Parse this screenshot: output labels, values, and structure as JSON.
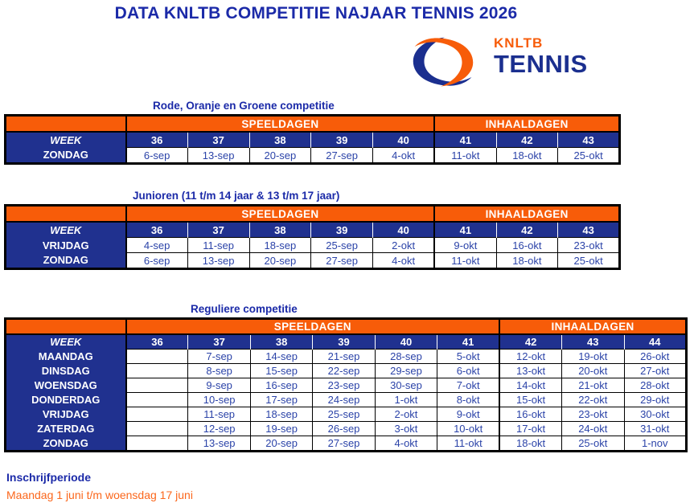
{
  "page": {
    "title": "DATA KNLTB COMPETITIE NAJAAR TENNIS 2026"
  },
  "logo": {
    "brand": "KNLTB",
    "wordmark": "TENNIS"
  },
  "labels": {
    "speeldagen": "SPEELDAGEN",
    "inhaaldagen": "INHAALDAGEN",
    "week": "WEEK"
  },
  "colors": {
    "orange": "#F75C09",
    "navy": "#20318F",
    "title_blue": "#1B2AA8",
    "date_text_blue": "#2B43A8",
    "footer_orange": "#FB671C",
    "border_black": "#000000"
  },
  "tables": [
    {
      "title": "Rode, Oranje en Groene competitie",
      "speeldagen_cols": 5,
      "inhaaldagen_cols": 3,
      "weeks": [
        "36",
        "37",
        "38",
        "39",
        "40",
        "41",
        "42",
        "43"
      ],
      "rows": [
        {
          "day": "ZONDAG",
          "dates": [
            "6-sep",
            "13-sep",
            "20-sep",
            "27-sep",
            "4-okt",
            "11-okt",
            "18-okt",
            "25-okt"
          ]
        }
      ]
    },
    {
      "title": "Junioren (11 t/m 14 jaar & 13 t/m 17 jaar)",
      "speeldagen_cols": 5,
      "inhaaldagen_cols": 3,
      "weeks": [
        "36",
        "37",
        "38",
        "39",
        "40",
        "41",
        "42",
        "43"
      ],
      "rows": [
        {
          "day": "VRIJDAG",
          "dates": [
            "4-sep",
            "11-sep",
            "18-sep",
            "25-sep",
            "2-okt",
            "9-okt",
            "16-okt",
            "23-okt"
          ]
        },
        {
          "day": "ZONDAG",
          "dates": [
            "6-sep",
            "13-sep",
            "20-sep",
            "27-sep",
            "4-okt",
            "11-okt",
            "18-okt",
            "25-okt"
          ]
        }
      ]
    },
    {
      "title": "Reguliere competitie",
      "speeldagen_cols": 6,
      "inhaaldagen_cols": 3,
      "weeks": [
        "36",
        "37",
        "38",
        "39",
        "40",
        "41",
        "42",
        "43",
        "44"
      ],
      "rows": [
        {
          "day": "MAANDAG",
          "dates": [
            "",
            "7-sep",
            "14-sep",
            "21-sep",
            "28-sep",
            "5-okt",
            "12-okt",
            "19-okt",
            "26-okt"
          ]
        },
        {
          "day": "DINSDAG",
          "dates": [
            "",
            "8-sep",
            "15-sep",
            "22-sep",
            "29-sep",
            "6-okt",
            "13-okt",
            "20-okt",
            "27-okt"
          ]
        },
        {
          "day": "WOENSDAG",
          "dates": [
            "",
            "9-sep",
            "16-sep",
            "23-sep",
            "30-sep",
            "7-okt",
            "14-okt",
            "21-okt",
            "28-okt"
          ]
        },
        {
          "day": "DONDERDAG",
          "dates": [
            "",
            "10-sep",
            "17-sep",
            "24-sep",
            "1-okt",
            "8-okt",
            "15-okt",
            "22-okt",
            "29-okt"
          ]
        },
        {
          "day": "VRIJDAG",
          "dates": [
            "",
            "11-sep",
            "18-sep",
            "25-sep",
            "2-okt",
            "9-okt",
            "16-okt",
            "23-okt",
            "30-okt"
          ]
        },
        {
          "day": "ZATERDAG",
          "dates": [
            "",
            "12-sep",
            "19-sep",
            "26-sep",
            "3-okt",
            "10-okt",
            "17-okt",
            "24-okt",
            "31-okt"
          ]
        },
        {
          "day": "ZONDAG",
          "dates": [
            "",
            "13-sep",
            "20-sep",
            "27-sep",
            "4-okt",
            "11-okt",
            "18-okt",
            "25-okt",
            "1-nov"
          ]
        }
      ]
    }
  ],
  "footer": {
    "heading": "Inschrijfperiode",
    "period": "Maandag 1 juni t/m woensdag 17 juni"
  }
}
